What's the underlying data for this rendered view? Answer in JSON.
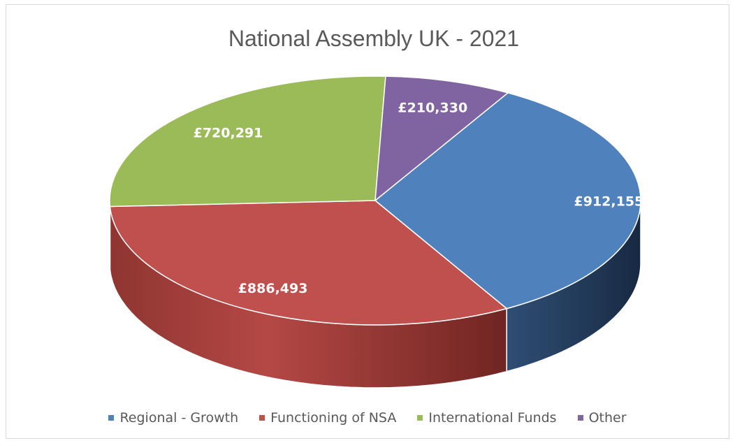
{
  "chart_data": {
    "type": "pie",
    "title": "National Assembly UK - 2021",
    "legend_position": "bottom",
    "slices": [
      {
        "name": "Regional - Growth",
        "value": 912155,
        "label": "£912,155",
        "color": "#4f81bd"
      },
      {
        "name": "Functioning of NSA",
        "value": 886493,
        "label": "£886,493",
        "color": "#c0504d"
      },
      {
        "name": "International Funds",
        "value": 720291,
        "label": "£720,291",
        "color": "#9bbb59"
      },
      {
        "name": "Other",
        "value": 210330,
        "label": "£210,330",
        "color": "#8064a2"
      }
    ]
  }
}
